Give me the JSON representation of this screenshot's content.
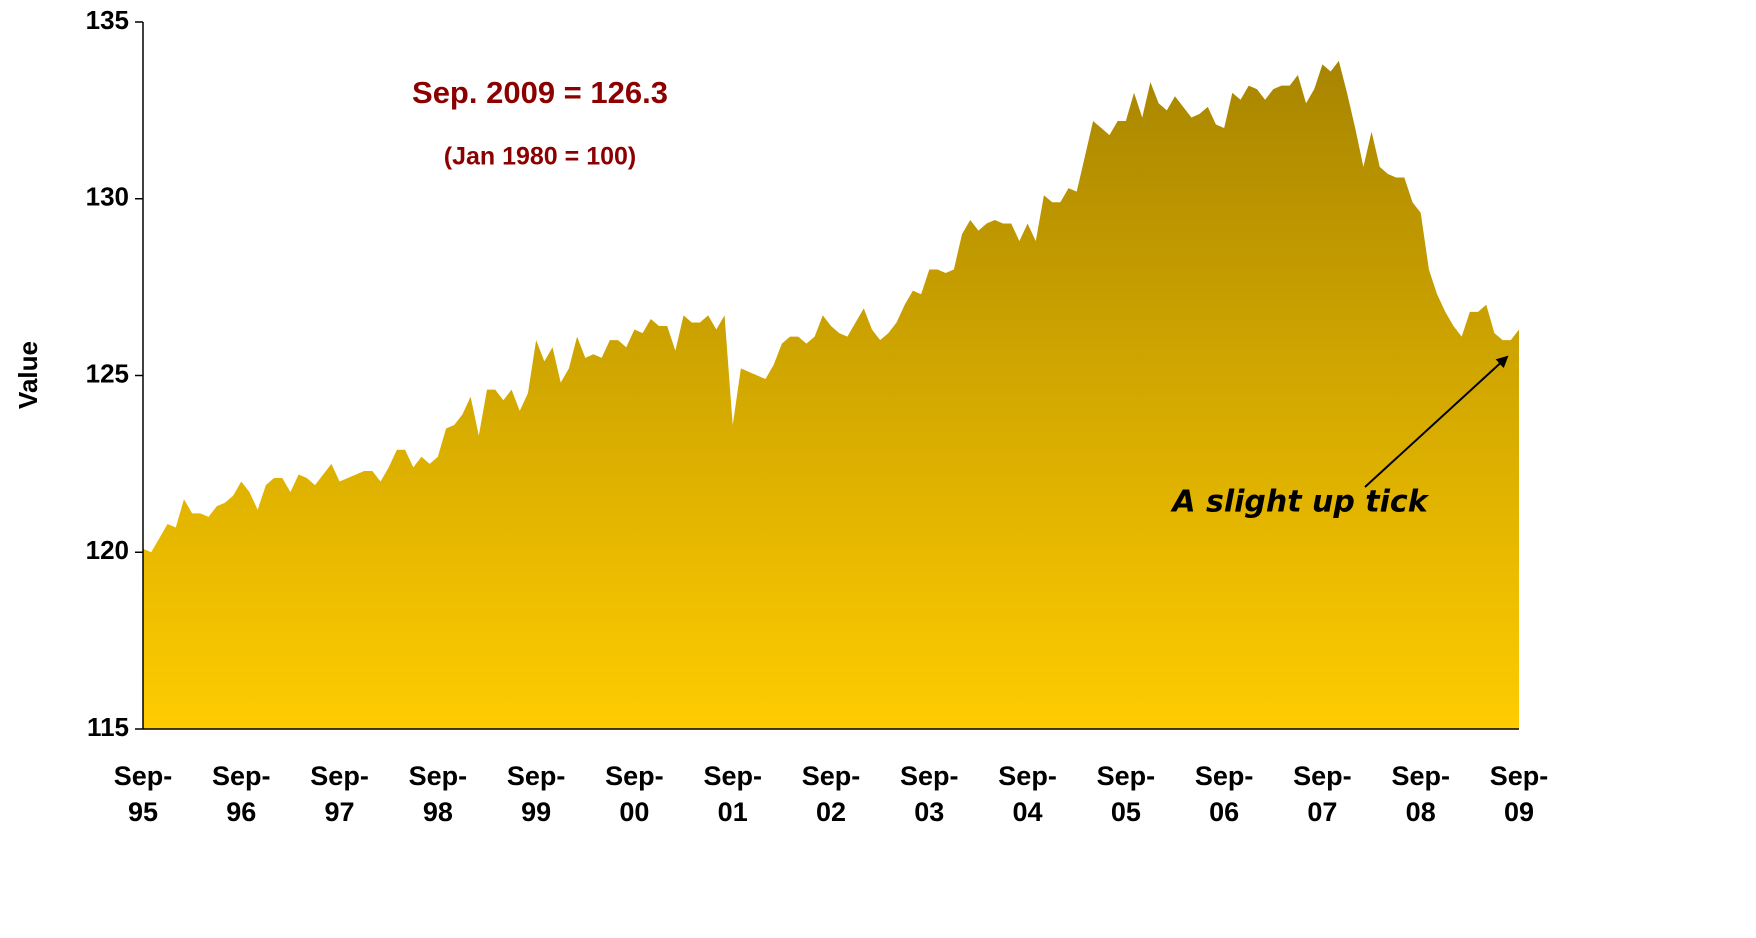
{
  "chart_data": {
    "type": "area",
    "annotations": [
      "Sep. 2009 = 126.3",
      "(Jan 1980 = 100)",
      "A slight up tick"
    ],
    "y_label": "Value",
    "categories": [
      "Sep-95",
      null,
      null,
      null,
      null,
      null,
      null,
      null,
      null,
      null,
      null,
      null,
      "Sep-96",
      null,
      null,
      null,
      null,
      null,
      null,
      null,
      null,
      null,
      null,
      null,
      "Sep-97",
      null,
      null,
      null,
      null,
      null,
      null,
      null,
      null,
      null,
      null,
      null,
      "Sep-98",
      null,
      null,
      null,
      null,
      null,
      null,
      null,
      null,
      null,
      null,
      null,
      "Sep-99",
      null,
      null,
      null,
      null,
      null,
      null,
      null,
      null,
      null,
      null,
      null,
      "Sep-00",
      null,
      null,
      null,
      null,
      null,
      null,
      null,
      null,
      null,
      null,
      null,
      "Sep-01",
      null,
      null,
      null,
      null,
      null,
      null,
      null,
      null,
      null,
      null,
      null,
      "Sep-02",
      null,
      null,
      null,
      null,
      null,
      null,
      null,
      null,
      null,
      null,
      null,
      "Sep-03",
      null,
      null,
      null,
      null,
      null,
      null,
      null,
      null,
      null,
      null,
      null,
      "Sep-04",
      null,
      null,
      null,
      null,
      null,
      null,
      null,
      null,
      null,
      null,
      null,
      "Sep-05",
      null,
      null,
      null,
      null,
      null,
      null,
      null,
      null,
      null,
      null,
      null,
      "Sep-06",
      null,
      null,
      null,
      null,
      null,
      null,
      null,
      null,
      null,
      null,
      null,
      "Sep-07",
      null,
      null,
      null,
      null,
      null,
      null,
      null,
      null,
      null,
      null,
      null,
      "Sep-08",
      null,
      null,
      null,
      null,
      null,
      null,
      null,
      null,
      null,
      null,
      null,
      "Sep-09"
    ],
    "values": [
      120.1,
      120.0,
      120.4,
      120.8,
      120.7,
      121.5,
      121.1,
      121.1,
      121.0,
      121.3,
      121.4,
      121.6,
      122.0,
      121.7,
      121.2,
      121.9,
      122.1,
      122.1,
      121.7,
      122.2,
      122.1,
      121.9,
      122.2,
      122.5,
      122.0,
      122.1,
      122.2,
      122.3,
      122.3,
      122.0,
      122.4,
      122.9,
      122.9,
      122.4,
      122.7,
      122.5,
      122.7,
      123.5,
      123.6,
      123.9,
      124.4,
      123.3,
      124.6,
      124.6,
      124.3,
      124.6,
      124.0,
      124.5,
      126.0,
      125.4,
      125.8,
      124.8,
      125.2,
      126.1,
      125.5,
      125.6,
      125.5,
      126.0,
      126.0,
      125.8,
      126.3,
      126.2,
      126.6,
      126.4,
      126.4,
      125.7,
      126.7,
      126.5,
      126.5,
      126.7,
      126.3,
      126.7,
      123.6,
      125.2,
      125.1,
      125.0,
      124.9,
      125.3,
      125.9,
      126.1,
      126.1,
      125.9,
      126.1,
      126.7,
      126.4,
      126.2,
      126.1,
      126.5,
      126.9,
      126.3,
      126.0,
      126.2,
      126.5,
      127.0,
      127.4,
      127.3,
      128.0,
      128.0,
      127.9,
      128.0,
      129.0,
      129.4,
      129.1,
      129.3,
      129.4,
      129.3,
      129.3,
      128.8,
      129.3,
      128.8,
      130.1,
      129.9,
      129.9,
      130.3,
      130.2,
      131.2,
      132.2,
      132.0,
      131.8,
      132.2,
      132.2,
      133.0,
      132.3,
      133.3,
      132.7,
      132.5,
      132.9,
      132.6,
      132.3,
      132.4,
      132.6,
      132.1,
      132.0,
      133.0,
      132.8,
      133.2,
      133.1,
      132.8,
      133.1,
      133.2,
      133.2,
      133.5,
      132.7,
      133.1,
      133.8,
      133.6,
      133.9,
      133.0,
      132.0,
      130.9,
      131.9,
      130.9,
      130.7,
      130.6,
      130.6,
      129.9,
      129.6,
      128.0,
      127.3,
      126.8,
      126.4,
      126.1,
      126.8,
      126.8,
      127.0,
      126.2,
      126.0,
      126.0,
      126.3
    ],
    "gradient": [
      "#a88500",
      "#ffcc00"
    ],
    "ylim": [
      115,
      135
    ],
    "yticks": [
      115,
      120,
      125,
      130,
      135
    ],
    "grid": false
  }
}
